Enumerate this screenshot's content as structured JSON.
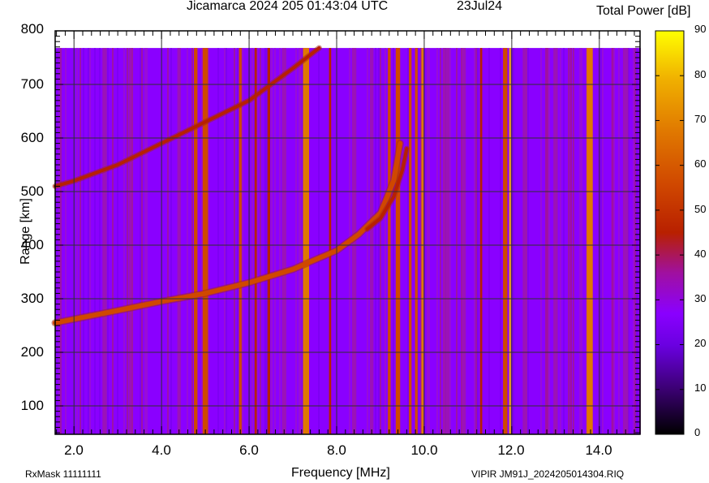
{
  "header": {
    "title": "Jicamarca 2024 205 01:43:04 UTC",
    "date": "23Jul24",
    "colorbar_title": "Total Power [dB]"
  },
  "footer": {
    "rxmask": "RxMask 11111111",
    "file": "VIPIR  JM91J_2024205014304.RIQ"
  },
  "colors": {
    "background_noise": "#8a00ff",
    "trace": "#d85a00",
    "interference_red": "#c03000",
    "interference_orange": "#e07000",
    "grid": "#303030"
  },
  "chart_data": {
    "type": "heatmap",
    "title": "Jicamarca 2024 205 01:43:04 UTC",
    "subtitle": "23Jul24",
    "xlabel": "Frequency [MHz]",
    "ylabel": "Range [km]",
    "xlim": [
      1.57,
      14.93
    ],
    "ylim": [
      47,
      800
    ],
    "data_range_km": [
      47,
      768
    ],
    "x_ticks": [
      "2.0",
      "4.0",
      "6.0",
      "8.0",
      "10.0",
      "12.0",
      "14.0"
    ],
    "y_ticks": [
      "100",
      "200",
      "300",
      "400",
      "500",
      "600",
      "700",
      "800"
    ],
    "grid": true,
    "colorbar": {
      "label": "Total Power [dB]",
      "range": [
        0,
        90
      ],
      "ticks": [
        "0",
        "10",
        "20",
        "30",
        "40",
        "50",
        "60",
        "70",
        "80",
        "90"
      ],
      "colormap": [
        "#000000",
        "#3a0070",
        "#6a00e0",
        "#8a00ff",
        "#a010a0",
        "#b82000",
        "#d04800",
        "#e07800",
        "#f0b000",
        "#ffff00"
      ]
    },
    "background_level_db": 27,
    "traces": [
      {
        "name": "F-layer O-trace (1st hop)",
        "level_db": 60,
        "points": [
          [
            1.57,
            255
          ],
          [
            2.0,
            262
          ],
          [
            3.0,
            278
          ],
          [
            4.0,
            295
          ],
          [
            5.0,
            310
          ],
          [
            6.0,
            330
          ],
          [
            7.0,
            355
          ],
          [
            8.0,
            390
          ],
          [
            8.5,
            420
          ],
          [
            9.0,
            460
          ],
          [
            9.3,
            520
          ],
          [
            9.45,
            590
          ]
        ]
      },
      {
        "name": "F-layer X-trace",
        "level_db": 50,
        "points": [
          [
            8.7,
            430
          ],
          [
            9.0,
            450
          ],
          [
            9.3,
            490
          ],
          [
            9.5,
            540
          ],
          [
            9.6,
            580
          ]
        ]
      },
      {
        "name": "F-layer multi-hop echo",
        "level_db": 50,
        "points": [
          [
            1.57,
            510
          ],
          [
            2.0,
            520
          ],
          [
            3.0,
            550
          ],
          [
            4.0,
            590
          ],
          [
            5.0,
            630
          ],
          [
            6.0,
            670
          ],
          [
            7.0,
            730
          ],
          [
            7.6,
            768
          ]
        ]
      }
    ],
    "interference_bands": [
      {
        "freq": 4.78,
        "width": 0.08,
        "level_db": 62
      },
      {
        "freq": 5.0,
        "width": 0.12,
        "level_db": 60
      },
      {
        "freq": 5.8,
        "width": 0.06,
        "level_db": 55
      },
      {
        "freq": 6.45,
        "width": 0.06,
        "level_db": 52
      },
      {
        "freq": 6.15,
        "width": 0.05,
        "level_db": 45
      },
      {
        "freq": 7.3,
        "width": 0.14,
        "level_db": 68
      },
      {
        "freq": 7.85,
        "width": 0.05,
        "level_db": 48
      },
      {
        "freq": 9.2,
        "width": 0.06,
        "level_db": 55
      },
      {
        "freq": 9.4,
        "width": 0.1,
        "level_db": 62
      },
      {
        "freq": 9.68,
        "width": 0.06,
        "level_db": 55
      },
      {
        "freq": 9.82,
        "width": 0.06,
        "level_db": 55
      },
      {
        "freq": 9.96,
        "width": 0.05,
        "level_db": 65
      },
      {
        "freq": 11.3,
        "width": 0.05,
        "level_db": 45
      },
      {
        "freq": 11.85,
        "width": 0.1,
        "level_db": 62
      },
      {
        "freq": 11.96,
        "width": 0.04,
        "level_db": 78
      },
      {
        "freq": 12.8,
        "width": 0.05,
        "level_db": 42
      },
      {
        "freq": 13.35,
        "width": 0.05,
        "level_db": 42
      },
      {
        "freq": 13.78,
        "width": 0.14,
        "level_db": 65
      },
      {
        "freq": 14.3,
        "width": 0.05,
        "level_db": 40
      }
    ],
    "weak_bands": [
      {
        "freq": 2.7,
        "width": 0.1
      },
      {
        "freq": 3.3,
        "width": 0.1
      },
      {
        "freq": 4.4,
        "width": 0.08
      },
      {
        "freq": 6.8,
        "width": 0.1
      },
      {
        "freq": 8.4,
        "width": 0.1
      },
      {
        "freq": 8.8,
        "width": 0.08
      },
      {
        "freq": 10.5,
        "width": 0.15
      },
      {
        "freq": 10.9,
        "width": 0.1
      },
      {
        "freq": 12.3,
        "width": 0.1
      },
      {
        "freq": 13.0,
        "width": 0.1
      },
      {
        "freq": 14.6,
        "width": 0.12
      }
    ]
  }
}
